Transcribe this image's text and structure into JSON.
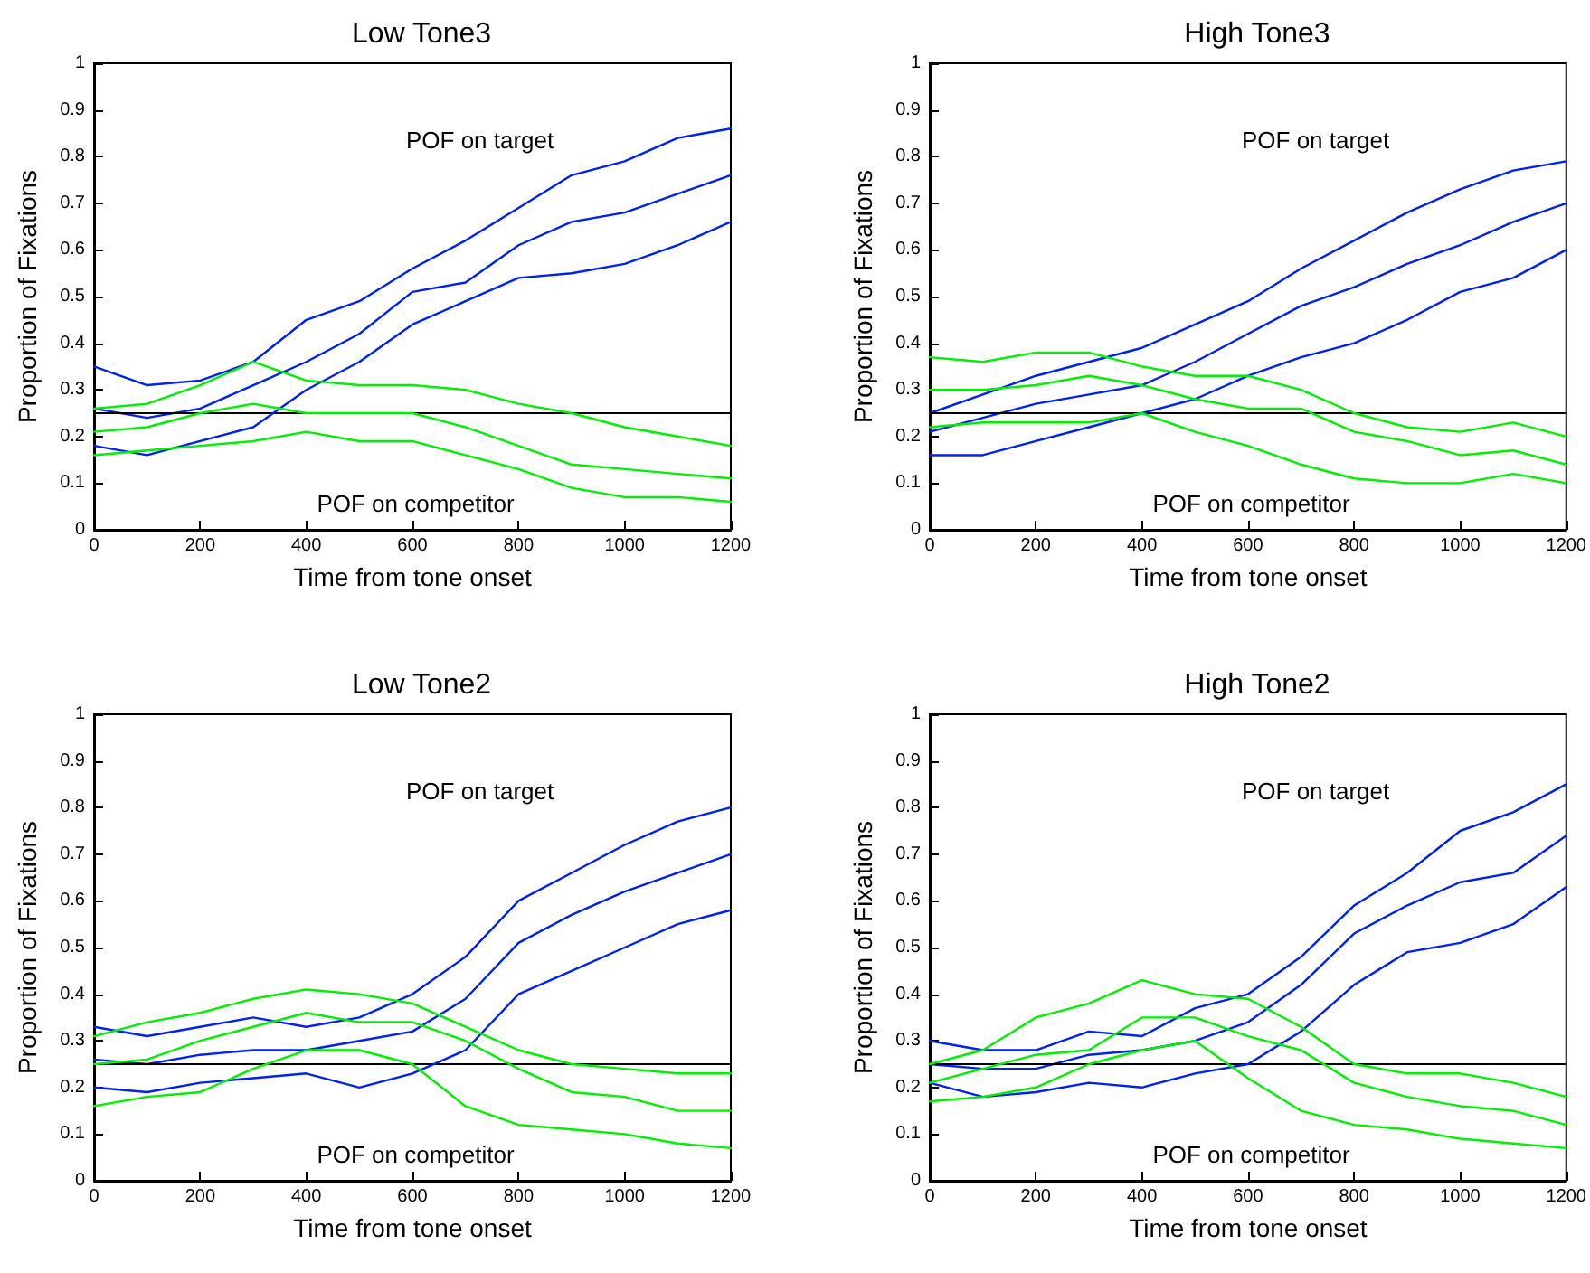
{
  "chart_data": [
    {
      "type": "line",
      "title": "Low Tone3",
      "xlabel": "Time from tone onset",
      "ylabel": "Proportion of Fixations",
      "x": [
        0,
        100,
        200,
        300,
        400,
        500,
        600,
        700,
        800,
        900,
        1000,
        1100,
        1200
      ],
      "series": [
        {
          "color": "#0022ee",
          "values": [
            0.35,
            0.31,
            0.32,
            0.36,
            0.45,
            0.49,
            0.56,
            0.62,
            0.69,
            0.76,
            0.79,
            0.84,
            0.86
          ]
        },
        {
          "color": "#0022ee",
          "values": [
            0.26,
            0.24,
            0.26,
            0.31,
            0.36,
            0.42,
            0.51,
            0.53,
            0.61,
            0.66,
            0.68,
            0.72,
            0.76
          ]
        },
        {
          "color": "#0022ee",
          "values": [
            0.18,
            0.16,
            0.19,
            0.22,
            0.3,
            0.36,
            0.44,
            0.49,
            0.54,
            0.55,
            0.57,
            0.61,
            0.66
          ]
        },
        {
          "color": "#00ee00",
          "values": [
            0.26,
            0.27,
            0.31,
            0.36,
            0.32,
            0.31,
            0.31,
            0.3,
            0.27,
            0.25,
            0.22,
            0.2,
            0.18
          ]
        },
        {
          "color": "#00ee00",
          "values": [
            0.21,
            0.22,
            0.25,
            0.27,
            0.25,
            0.25,
            0.25,
            0.22,
            0.18,
            0.14,
            0.13,
            0.12,
            0.11
          ]
        },
        {
          "color": "#00ee00",
          "values": [
            0.16,
            0.17,
            0.18,
            0.19,
            0.21,
            0.19,
            0.19,
            0.16,
            0.13,
            0.09,
            0.07,
            0.07,
            0.06
          ]
        }
      ],
      "xlim": [
        0,
        1200
      ],
      "xticks": [
        0,
        200,
        400,
        600,
        800,
        1000,
        1200
      ],
      "ylim": [
        0,
        1
      ],
      "yticks": [
        0,
        0.1,
        0.2,
        0.3,
        0.4,
        0.5,
        0.6,
        0.7,
        0.8,
        0.9,
        1
      ],
      "ref_lines": [
        {
          "axis": "y",
          "value": 0.25,
          "color": "#000000"
        }
      ],
      "annotations": [
        "POF on target",
        "POF on competitor"
      ],
      "grid": false,
      "marker": "none",
      "line_style": "solid"
    },
    {
      "type": "line",
      "title": "High Tone3",
      "xlabel": "Time from tone onset",
      "ylabel": "Proportion of Fixations",
      "x": [
        0,
        100,
        200,
        300,
        400,
        500,
        600,
        700,
        800,
        900,
        1000,
        1100,
        1200
      ],
      "series": [
        {
          "color": "#0022ee",
          "values": [
            0.25,
            0.29,
            0.33,
            0.36,
            0.39,
            0.44,
            0.49,
            0.56,
            0.62,
            0.68,
            0.73,
            0.77,
            0.79
          ]
        },
        {
          "color": "#0022ee",
          "values": [
            0.21,
            0.24,
            0.27,
            0.29,
            0.31,
            0.36,
            0.42,
            0.48,
            0.52,
            0.57,
            0.61,
            0.66,
            0.7
          ]
        },
        {
          "color": "#0022ee",
          "values": [
            0.16,
            0.16,
            0.19,
            0.22,
            0.25,
            0.28,
            0.33,
            0.37,
            0.4,
            0.45,
            0.51,
            0.54,
            0.6
          ]
        },
        {
          "color": "#00ee00",
          "values": [
            0.37,
            0.36,
            0.38,
            0.38,
            0.35,
            0.33,
            0.33,
            0.3,
            0.25,
            0.22,
            0.21,
            0.23,
            0.2
          ]
        },
        {
          "color": "#00ee00",
          "values": [
            0.3,
            0.3,
            0.31,
            0.33,
            0.31,
            0.28,
            0.26,
            0.26,
            0.21,
            0.19,
            0.16,
            0.17,
            0.14
          ]
        },
        {
          "color": "#00ee00",
          "values": [
            0.22,
            0.23,
            0.23,
            0.23,
            0.25,
            0.21,
            0.18,
            0.14,
            0.11,
            0.1,
            0.1,
            0.12,
            0.1
          ]
        }
      ],
      "xlim": [
        0,
        1200
      ],
      "xticks": [
        0,
        200,
        400,
        600,
        800,
        1000,
        1200
      ],
      "ylim": [
        0,
        1
      ],
      "yticks": [
        0,
        0.1,
        0.2,
        0.3,
        0.4,
        0.5,
        0.6,
        0.7,
        0.8,
        0.9,
        1
      ],
      "ref_lines": [
        {
          "axis": "y",
          "value": 0.25,
          "color": "#000000"
        }
      ],
      "annotations": [
        "POF on target",
        "POF on competitor"
      ],
      "grid": false,
      "marker": "none",
      "line_style": "solid"
    },
    {
      "type": "line",
      "title": "Low Tone2",
      "xlabel": "Time from tone onset",
      "ylabel": "Proportion of Fixations",
      "x": [
        0,
        100,
        200,
        300,
        400,
        500,
        600,
        700,
        800,
        900,
        1000,
        1100,
        1200
      ],
      "series": [
        {
          "color": "#0022ee",
          "values": [
            0.33,
            0.31,
            0.33,
            0.35,
            0.33,
            0.35,
            0.4,
            0.48,
            0.6,
            0.66,
            0.72,
            0.77,
            0.8
          ]
        },
        {
          "color": "#0022ee",
          "values": [
            0.26,
            0.25,
            0.27,
            0.28,
            0.28,
            0.3,
            0.32,
            0.39,
            0.51,
            0.57,
            0.62,
            0.66,
            0.7
          ]
        },
        {
          "color": "#0022ee",
          "values": [
            0.2,
            0.19,
            0.21,
            0.22,
            0.23,
            0.2,
            0.23,
            0.28,
            0.4,
            0.45,
            0.5,
            0.55,
            0.58
          ]
        },
        {
          "color": "#00ee00",
          "values": [
            0.31,
            0.34,
            0.36,
            0.39,
            0.41,
            0.4,
            0.38,
            0.33,
            0.28,
            0.25,
            0.24,
            0.23,
            0.23
          ]
        },
        {
          "color": "#00ee00",
          "values": [
            0.25,
            0.26,
            0.3,
            0.33,
            0.36,
            0.34,
            0.34,
            0.3,
            0.24,
            0.19,
            0.18,
            0.15,
            0.15
          ]
        },
        {
          "color": "#00ee00",
          "values": [
            0.16,
            0.18,
            0.19,
            0.24,
            0.28,
            0.28,
            0.25,
            0.16,
            0.12,
            0.11,
            0.1,
            0.08,
            0.07
          ]
        }
      ],
      "xlim": [
        0,
        1200
      ],
      "xticks": [
        0,
        200,
        400,
        600,
        800,
        1000,
        1200
      ],
      "ylim": [
        0,
        1
      ],
      "yticks": [
        0,
        0.1,
        0.2,
        0.3,
        0.4,
        0.5,
        0.6,
        0.7,
        0.8,
        0.9,
        1
      ],
      "ref_lines": [
        {
          "axis": "y",
          "value": 0.25,
          "color": "#000000"
        }
      ],
      "annotations": [
        "POF on target",
        "POF on competitor"
      ],
      "grid": false,
      "marker": "none",
      "line_style": "solid"
    },
    {
      "type": "line",
      "title": "High Tone2",
      "xlabel": "Time from tone onset",
      "ylabel": "Proportion of Fixations",
      "x": [
        0,
        100,
        200,
        300,
        400,
        500,
        600,
        700,
        800,
        900,
        1000,
        1100,
        1200
      ],
      "series": [
        {
          "color": "#0022ee",
          "values": [
            0.3,
            0.28,
            0.28,
            0.32,
            0.31,
            0.37,
            0.4,
            0.48,
            0.59,
            0.66,
            0.75,
            0.79,
            0.85
          ]
        },
        {
          "color": "#0022ee",
          "values": [
            0.25,
            0.24,
            0.24,
            0.27,
            0.28,
            0.3,
            0.34,
            0.42,
            0.53,
            0.59,
            0.64,
            0.66,
            0.74
          ]
        },
        {
          "color": "#0022ee",
          "values": [
            0.21,
            0.18,
            0.19,
            0.21,
            0.2,
            0.23,
            0.25,
            0.32,
            0.42,
            0.49,
            0.51,
            0.55,
            0.63
          ]
        },
        {
          "color": "#00ee00",
          "values": [
            0.25,
            0.28,
            0.35,
            0.38,
            0.43,
            0.4,
            0.39,
            0.33,
            0.25,
            0.23,
            0.23,
            0.21,
            0.18
          ]
        },
        {
          "color": "#00ee00",
          "values": [
            0.21,
            0.24,
            0.27,
            0.28,
            0.35,
            0.35,
            0.31,
            0.28,
            0.21,
            0.18,
            0.16,
            0.15,
            0.12
          ]
        },
        {
          "color": "#00ee00",
          "values": [
            0.17,
            0.18,
            0.2,
            0.25,
            0.28,
            0.3,
            0.22,
            0.15,
            0.12,
            0.11,
            0.09,
            0.08,
            0.07
          ]
        }
      ],
      "xlim": [
        0,
        1200
      ],
      "xticks": [
        0,
        200,
        400,
        600,
        800,
        1000,
        1200
      ],
      "ylim": [
        0,
        1
      ],
      "yticks": [
        0,
        0.1,
        0.2,
        0.3,
        0.4,
        0.5,
        0.6,
        0.7,
        0.8,
        0.9,
        1
      ],
      "ref_lines": [
        {
          "axis": "y",
          "value": 0.25,
          "color": "#000000"
        }
      ],
      "annotations": [
        "POF on target",
        "POF on competitor"
      ],
      "grid": false,
      "marker": "none",
      "line_style": "solid"
    }
  ]
}
